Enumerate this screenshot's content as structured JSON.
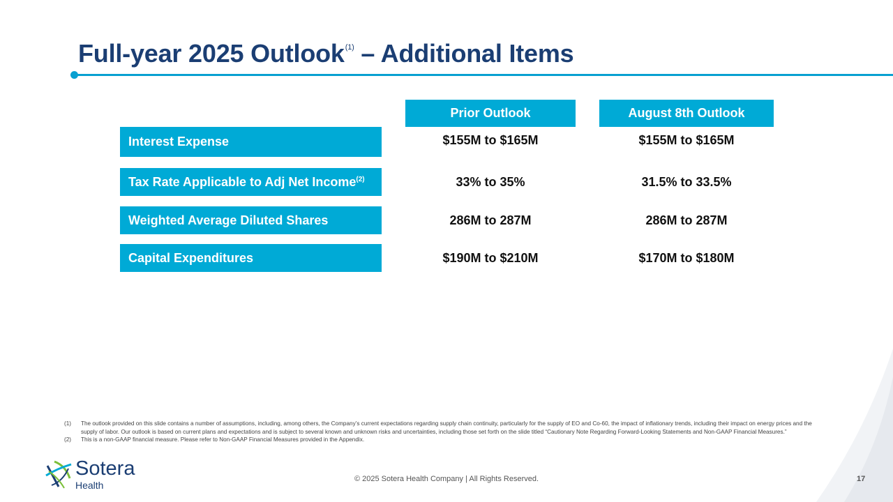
{
  "slide": {
    "title": "Full-year 2025 Outlook",
    "title_sup": "(1)",
    "title_suffix": " – Additional Items",
    "page_number": "17",
    "copyright": "© 2025 Sotera Health Company |  All Rights Reserved."
  },
  "table": {
    "columns": [
      "Prior Outlook",
      "August 8th Outlook"
    ],
    "rows": [
      {
        "label": "Interest Expense",
        "sup": "",
        "prior": "$155M to $165M",
        "august": "$155M to $165M"
      },
      {
        "label": "Tax Rate Applicable to Adj Net Income",
        "sup": "(2)",
        "prior": "33% to 35%",
        "august": "31.5% to 33.5%"
      },
      {
        "label": "Weighted Average Diluted Shares",
        "sup": "",
        "prior": "286M to 287M",
        "august": "286M to 287M"
      },
      {
        "label": "Capital Expenditures",
        "sup": "",
        "prior": "$190M to $210M",
        "august": "$170M to $180M"
      }
    ]
  },
  "footnotes": [
    {
      "num": "(1)",
      "text": "The outlook provided on this slide contains a number of assumptions, including, among others, the Company’s current expectations regarding supply chain continuity, particularly for the supply of EO and Co-60, the impact of inflationary trends, including their impact on energy prices and the supply of labor. Our outlook is based on current plans and expectations and is subject to several known and unknown risks and uncertainties, including those set forth on the slide titled “Cautionary Note Regarding Forward-Looking Statements and Non-GAAP Financial Measures.”"
    },
    {
      "num": "(2)",
      "text": "This is a non-GAAP financial measure. Please refer to Non-GAAP Financial Measures provided in the Appendix."
    }
  ],
  "logo": {
    "word": "Sotera",
    "sub": "Health",
    "icon": "sotera-mark-icon"
  },
  "colors": {
    "accent": "#00aad6",
    "title": "#1b3e73"
  }
}
